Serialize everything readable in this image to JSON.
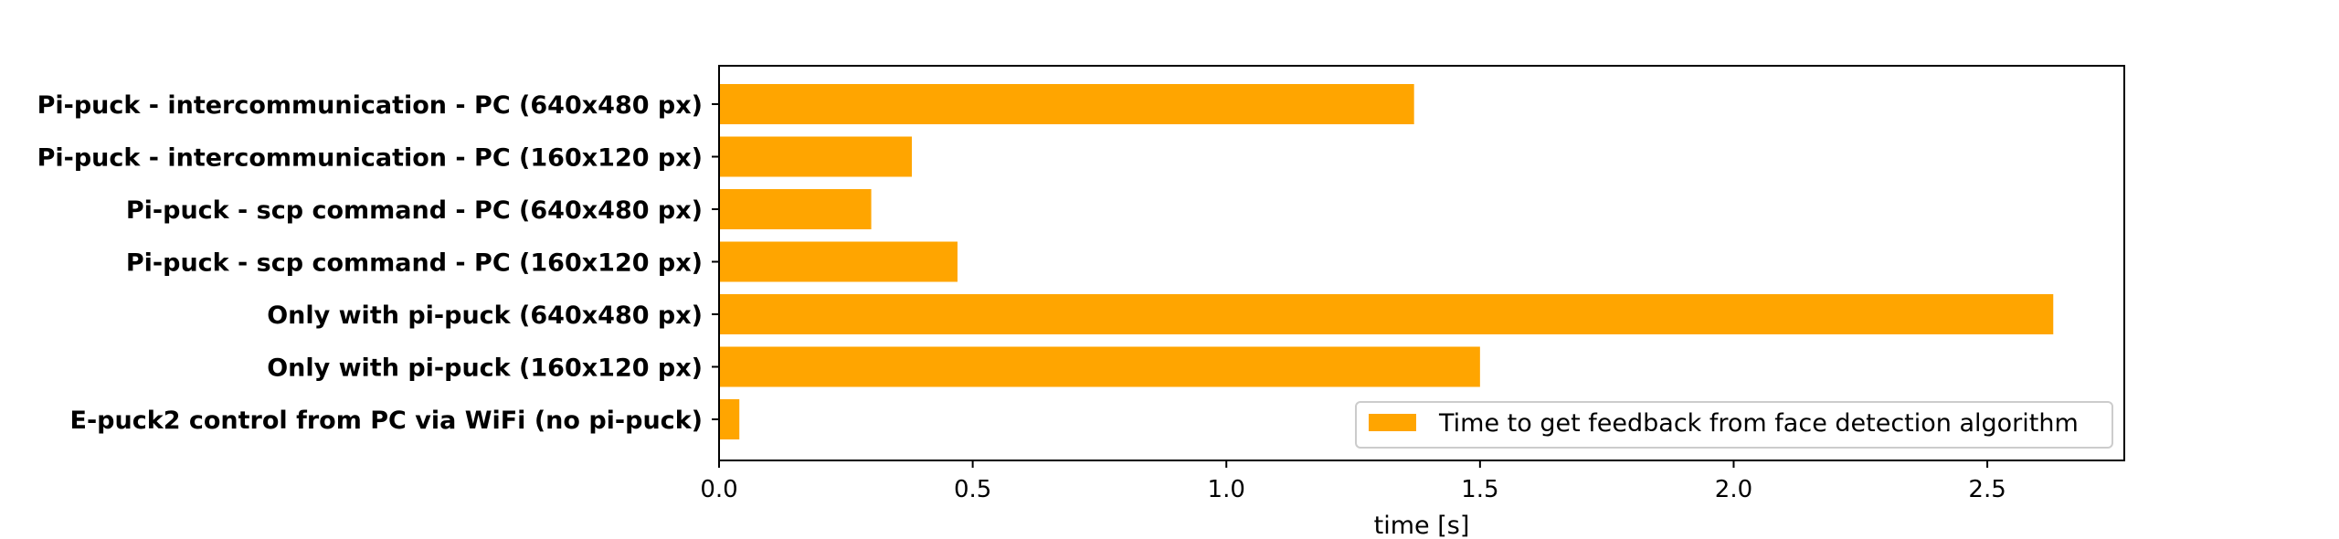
{
  "chart_data": {
    "type": "bar",
    "orientation": "horizontal",
    "categories": [
      "Pi-puck - intercommunication - PC (640x480 px)",
      "Pi-puck - intercommunication - PC (160x120 px)",
      "Pi-puck - scp command - PC (640x480 px)",
      "Pi-puck - scp command - PC (160x120 px)",
      "Only with pi-puck (640x480 px)",
      "Only with pi-puck (160x120 px)",
      "E-puck2 control from PC via WiFi (no pi-puck)"
    ],
    "series": [
      {
        "name": "Time to get feedback from face detection algorithm",
        "values": [
          1.37,
          0.38,
          0.3,
          0.47,
          2.63,
          1.5,
          0.04
        ],
        "color": "#ffa500"
      }
    ],
    "xlabel": "time [s]",
    "ylabel": "",
    "xlim": [
      0,
      2.77
    ],
    "xticks": [
      0.0,
      0.5,
      1.0,
      1.5,
      2.0,
      2.5
    ],
    "xtick_labels": [
      "0.0",
      "0.5",
      "1.0",
      "1.5",
      "2.0",
      "2.5"
    ],
    "grid": false,
    "legend_position": "lower-right"
  }
}
